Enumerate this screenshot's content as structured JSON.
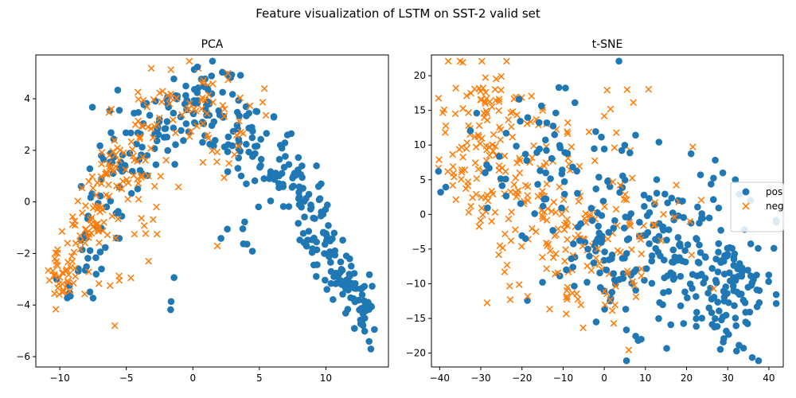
{
  "figure": {
    "title": "Feature visualization of LSTM on SST-2 valid set"
  },
  "colors": {
    "pos": "#1f77b4",
    "neg": "#ff7f0e"
  },
  "chart_data": [
    {
      "type": "scatter",
      "title": "PCA",
      "xlabel": "",
      "ylabel": "",
      "xlim": [
        -11.8,
        14.7
      ],
      "ylim": [
        -6.4,
        5.7
      ],
      "xticks": [
        -10,
        -5,
        0,
        5,
        10
      ],
      "yticks": [
        -6,
        -4,
        -2,
        0,
        2,
        4
      ],
      "grid": false,
      "series": [
        {
          "name": "pos",
          "marker": "circle",
          "cluster_spec": [
            [
              -9.4,
              -3.2,
              0.6,
              0.4,
              8
            ],
            [
              -7.8,
              -2.2,
              1.0,
              0.9,
              14
            ],
            [
              -6.0,
              0.2,
              1.3,
              1.0,
              28
            ],
            [
              -4.5,
              2.2,
              1.3,
              1.0,
              30
            ],
            [
              -2.3,
              3.2,
              1.3,
              1.0,
              30
            ],
            [
              0.2,
              3.8,
              1.4,
              0.9,
              34
            ],
            [
              2.2,
              3.5,
              1.3,
              1.0,
              30
            ],
            [
              4.3,
              2.3,
              1.1,
              0.8,
              34
            ],
            [
              6.5,
              1.2,
              1.0,
              0.6,
              34
            ],
            [
              8.2,
              0.0,
              0.8,
              0.6,
              32
            ],
            [
              9.8,
              -1.5,
              0.7,
              0.6,
              32
            ],
            [
              11.2,
              -2.8,
              0.6,
              0.5,
              32
            ],
            [
              12.3,
              -3.6,
              0.5,
              0.4,
              28
            ],
            [
              12.9,
              -4.6,
              0.4,
              0.4,
              16
            ],
            [
              -2.0,
              -3.0,
              0.4,
              0.3,
              2
            ],
            [
              -1.5,
              -4.1,
              0.2,
              0.2,
              1
            ],
            [
              0.2,
              5.2,
              0.2,
              0.2,
              1
            ],
            [
              1.5,
              5.4,
              0.2,
              0.2,
              1
            ],
            [
              3.5,
              -1.3,
              0.8,
              0.4,
              6
            ],
            [
              13.2,
              -5.6,
              0.2,
              0.2,
              2
            ]
          ]
        },
        {
          "name": "neg",
          "marker": "x",
          "cluster_spec": [
            [
              -9.8,
              -3.0,
              0.6,
              0.5,
              26
            ],
            [
              -8.5,
              -1.7,
              0.8,
              0.7,
              32
            ],
            [
              -7.2,
              -0.5,
              0.9,
              0.7,
              30
            ],
            [
              -5.8,
              0.8,
              1.0,
              0.8,
              28
            ],
            [
              -4.3,
              2.0,
              1.1,
              0.9,
              28
            ],
            [
              -2.5,
              3.3,
              1.2,
              0.9,
              24
            ],
            [
              -0.5,
              4.0,
              1.2,
              0.8,
              20
            ],
            [
              1.6,
              3.5,
              1.3,
              1.0,
              18
            ],
            [
              3.5,
              2.5,
              1.2,
              1.0,
              10
            ],
            [
              -10.5,
              -2.8,
              0.3,
              0.3,
              4
            ],
            [
              -6.3,
              -4.5,
              0.3,
              0.3,
              1
            ],
            [
              -5.2,
              -3.2,
              0.5,
              0.5,
              3
            ],
            [
              -3.5,
              -1.2,
              0.8,
              0.5,
              5
            ],
            [
              -4.5,
              -2.8,
              0.3,
              0.3,
              1
            ],
            [
              1.5,
              -1.5,
              0.2,
              0.2,
              1
            ],
            [
              4.5,
              4.5,
              0.4,
              0.2,
              2
            ],
            [
              -2.5,
              -0.3,
              1.0,
              0.6,
              6
            ]
          ]
        }
      ]
    },
    {
      "type": "scatter",
      "title": "t-SNE",
      "xlabel": "",
      "ylabel": "",
      "xlim": [
        -42,
        43.5
      ],
      "ylim": [
        -22,
        23
      ],
      "xticks": [
        -40,
        -30,
        -20,
        -10,
        0,
        10,
        20,
        30,
        40
      ],
      "yticks": [
        -20,
        -15,
        -10,
        -5,
        0,
        5,
        10,
        15,
        20
      ],
      "grid": false,
      "legend": {
        "placement": "right",
        "entries": [
          "pos",
          "neg"
        ]
      },
      "series": [
        {
          "name": "pos",
          "marker": "circle",
          "cluster_spec": [
            [
              30,
              -12,
              5.5,
              4.5,
              95
            ],
            [
              20,
              -7,
              7,
              5,
              60
            ],
            [
              10,
              -4,
              8,
              5,
              50
            ],
            [
              -2,
              -6,
              8,
              6,
              40
            ],
            [
              -8,
              10,
              7,
              5,
              26
            ],
            [
              -15,
              8,
              7,
              5,
              22
            ],
            [
              0,
              2,
              8,
              5,
              20
            ],
            [
              25,
              0,
              8,
              5,
              25
            ],
            [
              -28,
              5,
              4,
              5,
              8
            ],
            [
              -37,
              3.5,
              1,
              1,
              1
            ],
            [
              13,
              10,
              1,
              1,
              1
            ],
            [
              -10,
              18,
              2,
              1,
              3
            ],
            [
              -5,
              -8,
              6,
              4,
              14
            ]
          ]
        },
        {
          "name": "neg",
          "marker": "x",
          "cluster_spec": [
            [
              -32,
              10,
              5,
              6,
              70
            ],
            [
              -22,
              7,
              6,
              6,
              60
            ],
            [
              -12,
              6,
              6,
              6,
              50
            ],
            [
              -28,
              17,
              3,
              3,
              18
            ],
            [
              -5,
              -4,
              5,
              4,
              40
            ],
            [
              2,
              -8,
              6,
              5,
              30
            ],
            [
              8,
              0,
              6,
              4,
              15
            ],
            [
              15,
              2,
              6,
              3,
              10
            ],
            [
              -18,
              -3,
              6,
              4,
              18
            ],
            [
              -8,
              -11,
              2,
              2,
              5
            ],
            [
              3,
              -16,
              1,
              1,
              2
            ],
            [
              28,
              -12,
              1,
              1,
              1
            ],
            [
              3,
              14,
              4,
              3,
              8
            ],
            [
              -15,
              -8,
              1,
              1,
              2
            ]
          ]
        }
      ]
    }
  ]
}
